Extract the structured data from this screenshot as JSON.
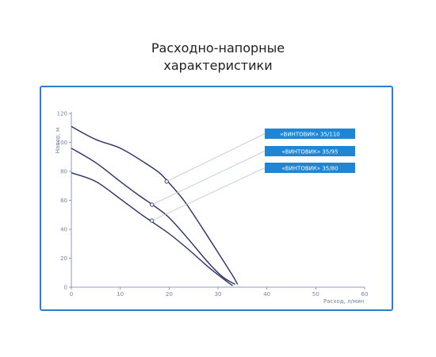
{
  "header": {
    "title_line1": "Расходно-напорные",
    "title_line2": "характеристики"
  },
  "colors": {
    "frame": "#2f7fc8",
    "curve": "#2a2f6b",
    "axis": "#6e83a8",
    "legend_bg": "#1f86d6",
    "leader": "#b9c3d3"
  },
  "chart_data": {
    "type": "line",
    "xlabel": "Расход, л/мин",
    "ylabel": "Напор, м",
    "xlim": [
      0,
      60
    ],
    "ylim": [
      0,
      120
    ],
    "xticks": [
      0,
      10,
      20,
      30,
      40,
      50,
      60
    ],
    "yticks": [
      0,
      20,
      40,
      60,
      80,
      100,
      120
    ],
    "grid": false,
    "legend": "right",
    "series": [
      {
        "name": "«ВИНТОВИК» 35/110",
        "x": [
          0,
          5,
          10,
          15,
          18,
          20,
          23,
          26,
          30,
          33,
          34
        ],
        "y": [
          111,
          102,
          96,
          86,
          79,
          72,
          60,
          45,
          24,
          8,
          2
        ],
        "marker": {
          "x": 19.5,
          "y": 73
        }
      },
      {
        "name": "«ВИНТОВИК» 35/95",
        "x": [
          0,
          5,
          10,
          14,
          17,
          20,
          24,
          28,
          31,
          33.5
        ],
        "y": [
          96,
          86,
          73,
          63,
          56,
          48,
          33,
          17,
          7,
          2
        ],
        "marker": {
          "x": 16.5,
          "y": 57
        }
      },
      {
        "name": "«ВИНТОВИК» 35/80",
        "x": [
          0,
          5,
          10,
          14,
          17,
          20,
          24,
          28,
          31,
          33
        ],
        "y": [
          79,
          73,
          61,
          51,
          44,
          37,
          26,
          14,
          6,
          1
        ],
        "marker": {
          "x": 16.5,
          "y": 46
        }
      }
    ]
  }
}
